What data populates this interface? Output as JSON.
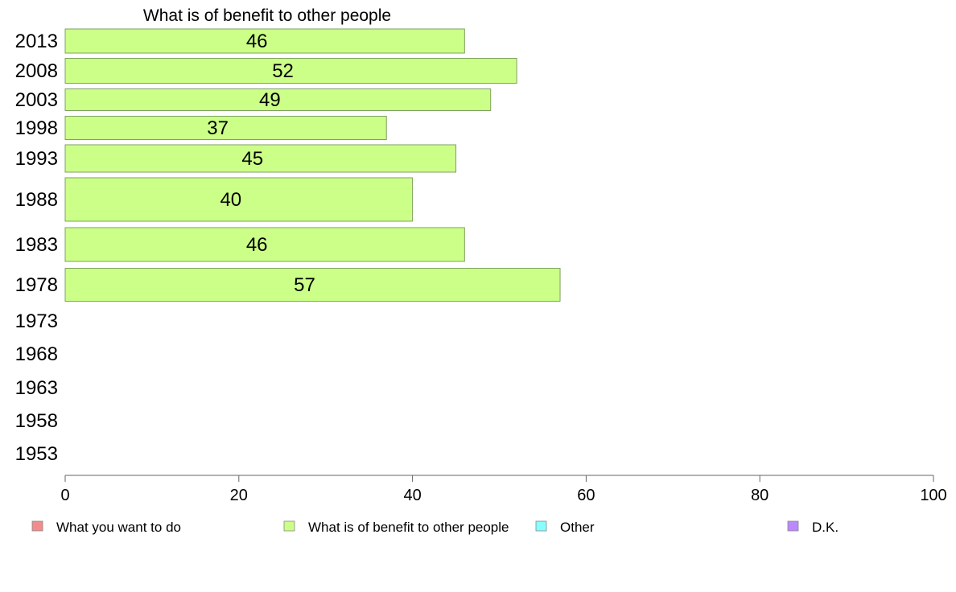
{
  "chart_data": {
    "type": "bar",
    "orientation": "horizontal",
    "title": "What is of benefit to other people",
    "categories": [
      "2013",
      "2008",
      "2003",
      "1998",
      "1993",
      "1988",
      "1983",
      "1978",
      "1973",
      "1968",
      "1963",
      "1958",
      "1953"
    ],
    "series": [
      {
        "name": "What is of benefit to other people",
        "color": "#ccff88",
        "values": [
          46,
          52,
          49,
          37,
          45,
          40,
          46,
          57,
          null,
          null,
          null,
          null,
          null
        ]
      }
    ],
    "xlim": [
      0,
      100
    ],
    "xticks": [
      0,
      20,
      40,
      60,
      80,
      100
    ],
    "grid": false,
    "legend": {
      "position": "bottom",
      "items": [
        {
          "label": "What you want to do",
          "color": "#f28c8c"
        },
        {
          "label": "What is of benefit to other people",
          "color": "#ccff88"
        },
        {
          "label": "Other",
          "color": "#88ffff"
        },
        {
          "label": "D.K.",
          "color": "#bb88ff"
        }
      ]
    }
  }
}
